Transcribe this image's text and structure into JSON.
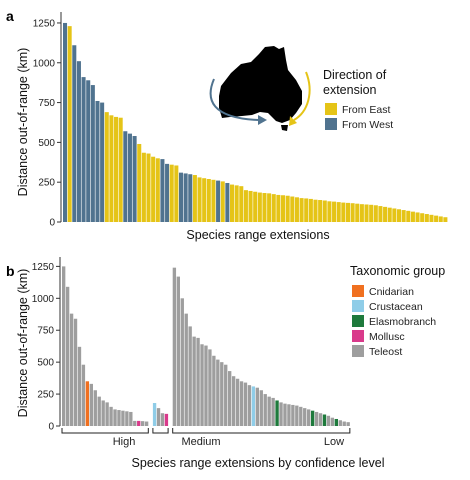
{
  "colors": {
    "from_east": "#E5C417",
    "from_west": "#50738F",
    "Cnidarian": "#F07020",
    "Crustacean": "#8FCDE8",
    "Elasmobranch": "#1E7A3C",
    "Mollusc": "#D93A8B",
    "Teleost": "#9E9E9E"
  },
  "chart_data": [
    {
      "type": "bar",
      "panel_label": "a",
      "xlabel": "Species range extensions",
      "ylabel": "Distance out-of-range (km)",
      "ylim": [
        0,
        1300
      ],
      "yticks": [
        0,
        250,
        500,
        750,
        1000,
        1250
      ],
      "legend": {
        "title_line1": "Direction of",
        "title_line2": "extension",
        "placement": "top-right",
        "items": [
          {
            "label": "From East",
            "color_key": "from_east"
          },
          {
            "label": "From West",
            "color_key": "from_west"
          }
        ]
      },
      "direction_sequence": "WEWWWWWWWEEEEWWWEEEEEWWEEWWWEEEEEWEWEEEEEEEEEEEEEEEEEEEEEEEEEEEEEEEEEEEEEEEEEEEEEEEEE",
      "values": [
        1250,
        1230,
        1110,
        1010,
        910,
        890,
        860,
        760,
        750,
        690,
        670,
        660,
        655,
        570,
        555,
        540,
        490,
        435,
        430,
        410,
        400,
        395,
        365,
        360,
        355,
        310,
        305,
        300,
        295,
        280,
        275,
        270,
        265,
        260,
        255,
        245,
        235,
        230,
        225,
        200,
        195,
        190,
        185,
        182,
        180,
        175,
        170,
        168,
        165,
        160,
        155,
        150,
        148,
        145,
        140,
        138,
        135,
        130,
        128,
        125,
        122,
        120,
        118,
        115,
        112,
        110,
        108,
        105,
        100,
        95,
        90,
        85,
        80,
        75,
        70,
        65,
        60,
        55,
        50,
        45,
        40,
        35,
        30
      ]
    },
    {
      "type": "bar",
      "panel_label": "b",
      "xlabel": "Species range extensions by confidence level",
      "ylabel": "Distance out-of-range (km)",
      "ylim": [
        0,
        1300
      ],
      "yticks": [
        0,
        250,
        500,
        750,
        1000,
        1250
      ],
      "legend": {
        "title": "Taxonomic group",
        "placement": "top-right",
        "items": [
          {
            "label": "Cnidarian",
            "color_key": "Cnidarian"
          },
          {
            "label": "Crustacean",
            "color_key": "Crustacean"
          },
          {
            "label": "Elasmobranch",
            "color_key": "Elasmobranch"
          },
          {
            "label": "Mollusc",
            "color_key": "Mollusc"
          },
          {
            "label": "Teleost",
            "color_key": "Teleost"
          }
        ]
      },
      "groups": [
        {
          "label": "High",
          "taxa": [
            "Teleost",
            "Teleost",
            "Teleost",
            "Teleost",
            "Teleost",
            "Teleost",
            "Cnidarian",
            "Teleost",
            "Teleost",
            "Teleost",
            "Teleost",
            "Teleost",
            "Teleost",
            "Teleost",
            "Teleost",
            "Teleost",
            "Teleost",
            "Teleost",
            "Teleost",
            "Mollusc",
            "Teleost",
            "Teleost"
          ],
          "values": [
            1250,
            1090,
            880,
            840,
            620,
            480,
            350,
            330,
            280,
            230,
            200,
            185,
            150,
            130,
            125,
            120,
            115,
            110,
            40,
            40,
            38,
            35
          ]
        },
        {
          "label": "Medium",
          "taxa": [
            "Crustacean",
            "Teleost",
            "Teleost",
            "Mollusc"
          ],
          "values": [
            180,
            140,
            100,
            95
          ]
        },
        {
          "label": "Low",
          "taxa": [
            "Teleost",
            "Teleost",
            "Teleost",
            "Teleost",
            "Teleost",
            "Teleost",
            "Teleost",
            "Teleost",
            "Teleost",
            "Teleost",
            "Teleost",
            "Teleost",
            "Teleost",
            "Teleost",
            "Teleost",
            "Teleost",
            "Teleost",
            "Teleost",
            "Teleost",
            "Teleost",
            "Crustacean",
            "Teleost",
            "Teleost",
            "Teleost",
            "Teleost",
            "Teleost",
            "Elasmobranch",
            "Teleost",
            "Teleost",
            "Teleost",
            "Teleost",
            "Teleost",
            "Teleost",
            "Teleost",
            "Teleost",
            "Elasmobranch",
            "Teleost",
            "Teleost",
            "Elasmobranch",
            "Teleost",
            "Teleost",
            "Elasmobranch",
            "Teleost",
            "Teleost",
            "Teleost"
          ],
          "values": [
            1240,
            1170,
            1000,
            880,
            780,
            700,
            690,
            640,
            630,
            600,
            550,
            520,
            500,
            480,
            430,
            390,
            370,
            350,
            340,
            320,
            310,
            300,
            280,
            250,
            230,
            220,
            200,
            185,
            175,
            170,
            165,
            160,
            150,
            140,
            130,
            120,
            110,
            100,
            90,
            80,
            65,
            55,
            45,
            35,
            30
          ]
        }
      ]
    }
  ]
}
